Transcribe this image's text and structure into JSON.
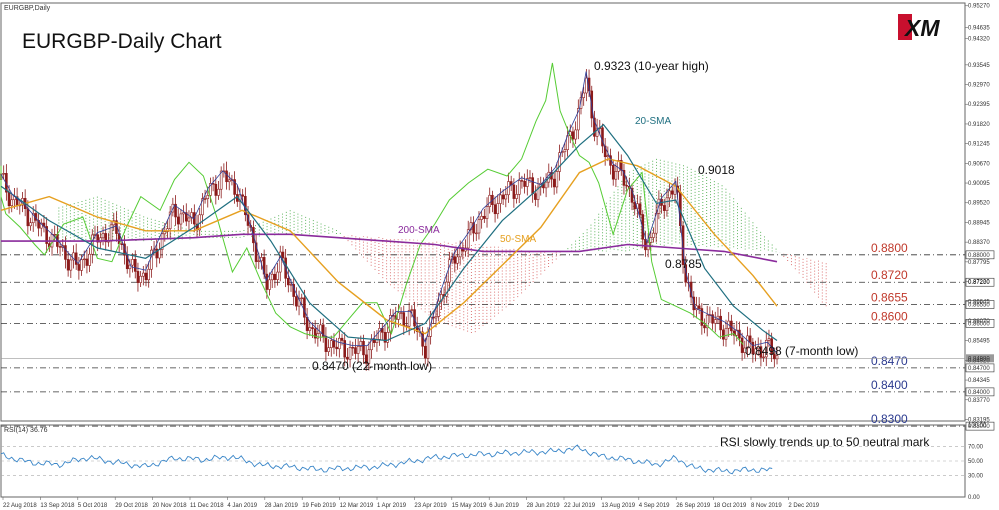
{
  "header": {
    "symbol_label": "EURGBP,Daily",
    "title": "EURGBP-Daily Chart",
    "logo_text": "XM"
  },
  "rsi_panel": {
    "label": "RSI(14) 36.76",
    "note": "RSI slowly trends up to 50 neutral mark",
    "scale": [
      "100.00",
      "70.00",
      "50.00",
      "30.00",
      "0.00"
    ]
  },
  "annotations": {
    "high": "0.9323 (10-year high)",
    "low": "0.8470 (22-month low)",
    "recent_low": "0.8498 (7-month low)",
    "mid_high": "0.9018",
    "mid_low": "0.8785",
    "sma20": "20-SMA",
    "sma50": "50-SMA",
    "sma200": "200-SMA"
  },
  "colors": {
    "candle": "#8b1a1a",
    "sma20": "#1f6f80",
    "sma50": "#e6a020",
    "sma200": "#8a2b9c",
    "chikou": "#55cc33",
    "cloud_bull": "#2e9e2e",
    "cloud_bear": "#d14b4b",
    "level_dark_red": "#c0392b",
    "level_blue": "#2b3a8f",
    "rsi_line": "#3a86c8"
  },
  "chart_data": {
    "type": "candlestick",
    "title": "EURGBP-Daily Chart",
    "x_tick_labels": [
      "22 Aug 2018",
      "13 Sep 2018",
      "5 Oct 2018",
      "29 Oct 2018",
      "20 Nov 2018",
      "11 Dec 2018",
      "4 Jan 2019",
      "28 Jan 2019",
      "19 Feb 2019",
      "12 Mar 2019",
      "1 Apr 2019",
      "23 Apr 2019",
      "15 May 2019",
      "6 Jun 2019",
      "28 Jun 2019",
      "22 Jul 2019",
      "13 Aug 2019",
      "4 Sep 2019",
      "26 Sep 2019",
      "18 Oct 2019",
      "8 Nov 2019",
      "2 Dec 2019"
    ],
    "y_tick_labels": [
      "0.95270",
      "0.94635",
      "0.94320",
      "0.93545",
      "0.92970",
      "0.92395",
      "0.91820",
      "0.91245",
      "0.90670",
      "0.90095",
      "0.89520",
      "0.88945",
      "0.88370",
      "0.87795",
      "0.87220",
      "0.86645",
      "0.86070",
      "0.85495",
      "0.84920",
      "0.84345",
      "0.83770",
      "0.83195"
    ],
    "ylim": [
      0.8315,
      0.9535
    ],
    "key_levels": [
      {
        "value": 0.88,
        "label": "0.8800",
        "tag": "0.88000",
        "color": "#c0392b"
      },
      {
        "value": 0.872,
        "label": "0.8720",
        "tag": "0.87200",
        "color": "#c0392b"
      },
      {
        "value": 0.8655,
        "label": "0.8655",
        "tag": "0.86550",
        "color": "#c0392b"
      },
      {
        "value": 0.86,
        "label": "0.8600",
        "tag": "0.86000",
        "color": "#c0392b"
      },
      {
        "value": 0.847,
        "label": "0.8470",
        "tag": "0.84700",
        "color": "#2b3a8f"
      },
      {
        "value": 0.84,
        "label": "0.8400",
        "tag": "0.84000",
        "color": "#2b3a8f"
      },
      {
        "value": 0.83,
        "label": "0.8300",
        "tag": "0.83000",
        "color": "#2b3a8f"
      }
    ],
    "current_price": {
      "value": 0.8498,
      "tag": "0.84980"
    },
    "close_path": [
      [
        0.0,
        0.902
      ],
      [
        0.012,
        0.896
      ],
      [
        0.025,
        0.893
      ],
      [
        0.04,
        0.888
      ],
      [
        0.055,
        0.884
      ],
      [
        0.07,
        0.879
      ],
      [
        0.08,
        0.876
      ],
      [
        0.1,
        0.885
      ],
      [
        0.12,
        0.887
      ],
      [
        0.135,
        0.875
      ],
      [
        0.15,
        0.874
      ],
      [
        0.165,
        0.884
      ],
      [
        0.18,
        0.893
      ],
      [
        0.2,
        0.889
      ],
      [
        0.215,
        0.898
      ],
      [
        0.23,
        0.903
      ],
      [
        0.245,
        0.899
      ],
      [
        0.26,
        0.886
      ],
      [
        0.275,
        0.871
      ],
      [
        0.29,
        0.878
      ],
      [
        0.305,
        0.868
      ],
      [
        0.32,
        0.859
      ],
      [
        0.335,
        0.855
      ],
      [
        0.35,
        0.853
      ],
      [
        0.365,
        0.852
      ],
      [
        0.38,
        0.852
      ],
      [
        0.395,
        0.857
      ],
      [
        0.41,
        0.862
      ],
      [
        0.425,
        0.862
      ],
      [
        0.44,
        0.853
      ],
      [
        0.455,
        0.867
      ],
      [
        0.47,
        0.879
      ],
      [
        0.485,
        0.885
      ],
      [
        0.5,
        0.892
      ],
      [
        0.52,
        0.897
      ],
      [
        0.54,
        0.901
      ],
      [
        0.56,
        0.899
      ],
      [
        0.575,
        0.904
      ],
      [
        0.59,
        0.915
      ],
      [
        0.6,
        0.921
      ],
      [
        0.607,
        0.932
      ],
      [
        0.615,
        0.918
      ],
      [
        0.625,
        0.911
      ],
      [
        0.635,
        0.905
      ],
      [
        0.645,
        0.903
      ],
      [
        0.655,
        0.897
      ],
      [
        0.67,
        0.882
      ],
      [
        0.685,
        0.895
      ],
      [
        0.7,
        0.9
      ],
      [
        0.71,
        0.874
      ],
      [
        0.72,
        0.863
      ],
      [
        0.735,
        0.861
      ],
      [
        0.75,
        0.859
      ],
      [
        0.765,
        0.856
      ],
      [
        0.78,
        0.852
      ],
      [
        0.795,
        0.853
      ],
      [
        0.805,
        0.8498
      ]
    ],
    "sma20_path": [
      [
        0.0,
        0.9
      ],
      [
        0.05,
        0.89
      ],
      [
        0.1,
        0.882
      ],
      [
        0.15,
        0.879
      ],
      [
        0.2,
        0.888
      ],
      [
        0.245,
        0.897
      ],
      [
        0.28,
        0.884
      ],
      [
        0.32,
        0.866
      ],
      [
        0.36,
        0.856
      ],
      [
        0.4,
        0.855
      ],
      [
        0.44,
        0.86
      ],
      [
        0.48,
        0.876
      ],
      [
        0.52,
        0.89
      ],
      [
        0.56,
        0.9
      ],
      [
        0.6,
        0.912
      ],
      [
        0.625,
        0.918
      ],
      [
        0.65,
        0.909
      ],
      [
        0.68,
        0.895
      ],
      [
        0.7,
        0.896
      ],
      [
        0.73,
        0.876
      ],
      [
        0.76,
        0.865
      ],
      [
        0.79,
        0.858
      ],
      [
        0.805,
        0.855
      ]
    ],
    "sma50_path": [
      [
        0.0,
        0.893
      ],
      [
        0.05,
        0.897
      ],
      [
        0.1,
        0.891
      ],
      [
        0.15,
        0.887
      ],
      [
        0.2,
        0.887
      ],
      [
        0.25,
        0.893
      ],
      [
        0.3,
        0.887
      ],
      [
        0.35,
        0.872
      ],
      [
        0.4,
        0.861
      ],
      [
        0.44,
        0.857
      ],
      [
        0.48,
        0.866
      ],
      [
        0.52,
        0.877
      ],
      [
        0.56,
        0.888
      ],
      [
        0.6,
        0.904
      ],
      [
        0.63,
        0.908
      ],
      [
        0.66,
        0.906
      ],
      [
        0.7,
        0.9
      ],
      [
        0.74,
        0.886
      ],
      [
        0.78,
        0.874
      ],
      [
        0.805,
        0.865
      ]
    ],
    "sma200_path": [
      [
        0.0,
        0.884
      ],
      [
        0.1,
        0.884
      ],
      [
        0.2,
        0.885
      ],
      [
        0.25,
        0.886
      ],
      [
        0.3,
        0.886
      ],
      [
        0.35,
        0.885
      ],
      [
        0.4,
        0.884
      ],
      [
        0.45,
        0.883
      ],
      [
        0.5,
        0.881
      ],
      [
        0.55,
        0.881
      ],
      [
        0.6,
        0.881
      ],
      [
        0.65,
        0.883
      ],
      [
        0.7,
        0.882
      ],
      [
        0.75,
        0.881
      ],
      [
        0.805,
        0.878
      ]
    ],
    "rsi_path": [
      [
        0.0,
        58
      ],
      [
        0.03,
        48
      ],
      [
        0.06,
        45
      ],
      [
        0.09,
        55
      ],
      [
        0.12,
        48
      ],
      [
        0.15,
        42
      ],
      [
        0.18,
        54
      ],
      [
        0.21,
        52
      ],
      [
        0.24,
        56
      ],
      [
        0.27,
        44
      ],
      [
        0.3,
        42
      ],
      [
        0.33,
        38
      ],
      [
        0.36,
        40
      ],
      [
        0.39,
        42
      ],
      [
        0.42,
        48
      ],
      [
        0.45,
        55
      ],
      [
        0.48,
        58
      ],
      [
        0.51,
        60
      ],
      [
        0.54,
        62
      ],
      [
        0.57,
        63
      ],
      [
        0.6,
        68
      ],
      [
        0.62,
        57
      ],
      [
        0.65,
        52
      ],
      [
        0.68,
        45
      ],
      [
        0.7,
        54
      ],
      [
        0.72,
        40
      ],
      [
        0.75,
        36
      ],
      [
        0.78,
        38
      ],
      [
        0.8,
        37
      ]
    ]
  }
}
